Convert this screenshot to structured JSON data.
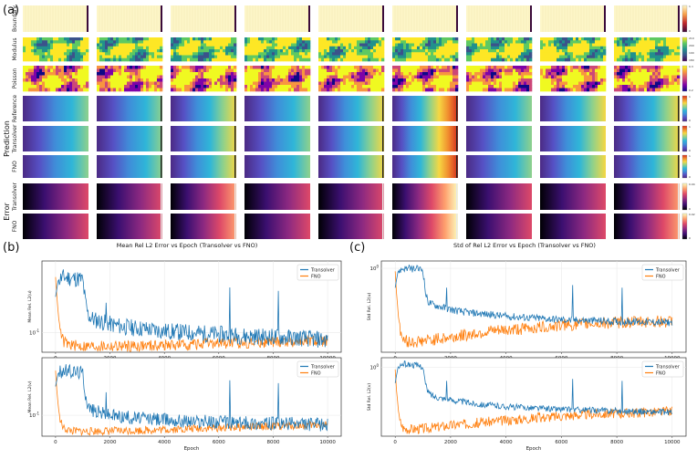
{
  "panel_labels": {
    "a": "(a)",
    "b": "(b)",
    "c": "(c)"
  },
  "grid": {
    "row_labels": [
      "Boundary",
      "Modulus",
      "Poisson",
      "Reference",
      "Transolver",
      "FNO",
      "Transolver",
      "FNO"
    ],
    "group_labels": {
      "prediction": "Prediction",
      "error": "Error"
    },
    "colorbar_ticks": [
      [
        "1",
        "0"
      ],
      [
        "210",
        "200",
        "190",
        "180"
      ],
      [
        "0.3",
        "0.2"
      ],
      [
        "1",
        "0"
      ],
      [
        "1",
        "0"
      ],
      [
        "1",
        "0"
      ],
      [
        "0.04",
        "0"
      ],
      [
        "0.02",
        "0"
      ]
    ],
    "colors": {
      "viridis": [
        "#440154",
        "#3b528b",
        "#21918c",
        "#5ec962",
        "#fde725"
      ],
      "plasma": [
        "#0d0887",
        "#7e03a8",
        "#cc4778",
        "#f89540",
        "#f0f921"
      ],
      "magma": [
        "#000004",
        "#3b0f70",
        "#8c2981",
        "#de4968",
        "#fe9f6d",
        "#fcfdbf"
      ],
      "pred": [
        "#4b2a84",
        "#5650c4",
        "#3f8ed9",
        "#2fb6d8",
        "#8fd18b",
        "#f6d742",
        "#f08a2e",
        "#d22b1e"
      ],
      "boundary": [
        "#fdf6c8",
        "#f3ebb5"
      ]
    }
  },
  "colors": {
    "transolver": "#1f77b4",
    "fno": "#ff7f0e",
    "grid": "#e6e6e6",
    "axis": "#333333"
  },
  "chart_data": [
    {
      "type": "line",
      "id": "b-top",
      "title": "Mean Rel L2 Error vs Epoch (Transolver vs FNO)",
      "xlabel": "",
      "ylabel": "Mean Rel. L2(u)",
      "yscale": "log",
      "xlim": [
        -500,
        10500
      ],
      "ylim": [
        0.055,
        0.9
      ],
      "xticks": [
        0,
        2000,
        4000,
        6000,
        8000,
        10000
      ],
      "ytick_label": "10^-1",
      "ytick_value": 0.1,
      "legend": "top-right",
      "series": [
        {
          "name": "Transolver",
          "x": [
            0,
            100,
            300,
            600,
            900,
            1000,
            1100,
            1200,
            1400,
            1700,
            2000,
            2500,
            3000,
            4000,
            5000,
            6000,
            7000,
            8000,
            9000,
            10000
          ],
          "y": [
            0.3,
            0.5,
            0.55,
            0.53,
            0.52,
            0.5,
            0.25,
            0.17,
            0.15,
            0.14,
            0.13,
            0.12,
            0.115,
            0.105,
            0.1,
            0.095,
            0.09,
            0.088,
            0.085,
            0.08
          ],
          "noise": 0.12,
          "spikes": [
            [
              1850,
              0.25
            ],
            [
              6400,
              0.4
            ],
            [
              8200,
              0.36
            ]
          ]
        },
        {
          "name": "FNO",
          "x": [
            0,
            50,
            150,
            300,
            600,
            1000,
            2000,
            3000,
            4000,
            5000,
            6000,
            7000,
            8000,
            9000,
            10000
          ],
          "y": [
            0.55,
            0.3,
            0.11,
            0.075,
            0.068,
            0.066,
            0.066,
            0.067,
            0.068,
            0.07,
            0.072,
            0.074,
            0.075,
            0.077,
            0.078
          ],
          "noise": 0.08,
          "spikes": []
        }
      ]
    },
    {
      "type": "line",
      "id": "b-bottom",
      "title": "",
      "xlabel": "Epoch",
      "ylabel": "Mean Rel. L2(v)",
      "yscale": "log",
      "xlim": [
        -500,
        10500
      ],
      "ylim": [
        0.045,
        0.9
      ],
      "xticks": [
        0,
        2000,
        4000,
        6000,
        8000,
        10000
      ],
      "ytick_label": "10^-1",
      "ytick_value": 0.1,
      "legend": "top-right",
      "series": [
        {
          "name": "Transolver",
          "x": [
            0,
            100,
            300,
            600,
            900,
            1000,
            1100,
            1200,
            1400,
            1700,
            2000,
            2500,
            3000,
            4000,
            5000,
            6000,
            7000,
            8000,
            9000,
            10000
          ],
          "y": [
            0.3,
            0.5,
            0.55,
            0.53,
            0.52,
            0.5,
            0.22,
            0.14,
            0.12,
            0.11,
            0.1,
            0.095,
            0.09,
            0.085,
            0.08,
            0.078,
            0.075,
            0.073,
            0.072,
            0.07
          ],
          "noise": 0.12,
          "spikes": [
            [
              1850,
              0.24
            ],
            [
              6400,
              0.38
            ],
            [
              8200,
              0.34
            ]
          ]
        },
        {
          "name": "FNO",
          "x": [
            0,
            50,
            150,
            300,
            600,
            1000,
            2000,
            3000,
            4000,
            5000,
            6000,
            7000,
            8000,
            9000,
            10000
          ],
          "y": [
            0.55,
            0.25,
            0.085,
            0.06,
            0.055,
            0.054,
            0.055,
            0.056,
            0.058,
            0.06,
            0.062,
            0.064,
            0.066,
            0.068,
            0.07
          ],
          "noise": 0.07,
          "spikes": []
        }
      ]
    },
    {
      "type": "line",
      "id": "c-top",
      "title": "Std of Rel L2 Error vs Epoch (Transolver vs FNO)",
      "xlabel": "",
      "ylabel": "Std Rel. L2(u)",
      "yscale": "log",
      "xlim": [
        -500,
        10500
      ],
      "ylim": [
        0.05,
        1.3
      ],
      "xticks": [
        0,
        2000,
        4000,
        6000,
        8000,
        10000
      ],
      "ytick_label": "10^0",
      "ytick_value": 1,
      "legend": "top-right",
      "series": [
        {
          "name": "Transolver",
          "x": [
            0,
            100,
            300,
            600,
            900,
            1000,
            1100,
            1200,
            1400,
            1700,
            2000,
            2500,
            3000,
            4000,
            5000,
            6000,
            7000,
            8000,
            9000,
            10000
          ],
          "y": [
            0.5,
            0.9,
            1.0,
            0.98,
            0.97,
            0.95,
            0.4,
            0.3,
            0.27,
            0.25,
            0.23,
            0.21,
            0.2,
            0.18,
            0.17,
            0.16,
            0.155,
            0.15,
            0.148,
            0.145
          ],
          "noise": 0.06,
          "spikes": [
            [
              1850,
              0.5
            ],
            [
              6400,
              0.55
            ],
            [
              8200,
              0.5
            ]
          ]
        },
        {
          "name": "FNO",
          "x": [
            0,
            50,
            150,
            300,
            600,
            1000,
            2000,
            3000,
            4000,
            5000,
            6000,
            7000,
            8000,
            9000,
            10000
          ],
          "y": [
            0.9,
            0.4,
            0.12,
            0.075,
            0.072,
            0.075,
            0.085,
            0.1,
            0.11,
            0.12,
            0.13,
            0.14,
            0.145,
            0.15,
            0.15
          ],
          "noise": 0.1,
          "spikes": []
        }
      ]
    },
    {
      "type": "line",
      "id": "c-bottom",
      "title": "",
      "xlabel": "Epoch",
      "ylabel": "Std Rel. L2(v)",
      "yscale": "log",
      "xlim": [
        -500,
        10500
      ],
      "ylim": [
        0.05,
        1.5
      ],
      "xticks": [
        0,
        2000,
        4000,
        6000,
        8000,
        10000
      ],
      "ytick_label": "10^0",
      "ytick_value": 1,
      "legend": "top-right",
      "series": [
        {
          "name": "Transolver",
          "x": [
            0,
            100,
            300,
            600,
            900,
            1000,
            1100,
            1200,
            1400,
            1700,
            2000,
            2500,
            3000,
            4000,
            5000,
            6000,
            7000,
            8000,
            9000,
            10000
          ],
          "y": [
            0.5,
            1.0,
            1.15,
            1.1,
            1.05,
            1.0,
            0.45,
            0.33,
            0.28,
            0.26,
            0.24,
            0.22,
            0.2,
            0.18,
            0.17,
            0.16,
            0.155,
            0.15,
            0.145,
            0.14
          ],
          "noise": 0.06,
          "spikes": [
            [
              1850,
              0.55
            ],
            [
              6400,
              0.6
            ],
            [
              8200,
              0.55
            ]
          ]
        },
        {
          "name": "FNO",
          "x": [
            0,
            50,
            150,
            300,
            600,
            1000,
            2000,
            3000,
            4000,
            5000,
            6000,
            7000,
            8000,
            9000,
            10000
          ],
          "y": [
            0.9,
            0.35,
            0.1,
            0.07,
            0.068,
            0.07,
            0.08,
            0.09,
            0.1,
            0.11,
            0.12,
            0.13,
            0.135,
            0.14,
            0.145
          ],
          "noise": 0.1,
          "spikes": []
        }
      ]
    }
  ]
}
